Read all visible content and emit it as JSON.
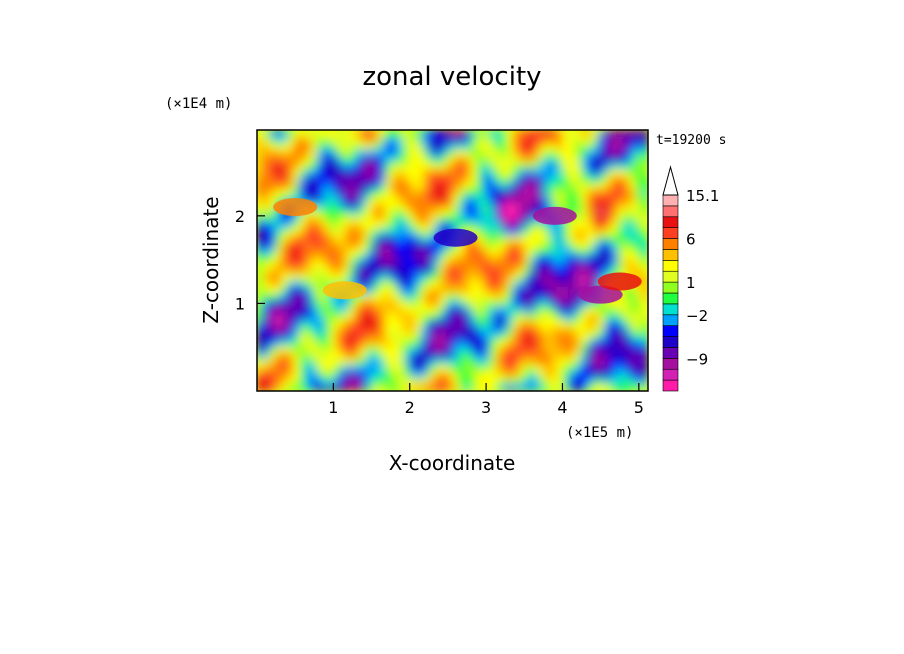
{
  "chart_data": {
    "type": "heatmap",
    "title": "zonal velocity",
    "xlabel": "X-coordinate",
    "ylabel": "Z-coordinate",
    "x_unit": "(×1E5 m)",
    "y_unit": "(×1E4 m)",
    "time_label": "t=19200 s",
    "xlim": [
      0,
      5.12
    ],
    "ylim": [
      0,
      2.98
    ],
    "x_ticks": [
      1,
      2,
      3,
      4,
      5
    ],
    "y_ticks": [
      1,
      2
    ],
    "colorbar": {
      "levels": [
        -12,
        -10,
        -9,
        -7,
        -5,
        -3,
        -2,
        -1,
        0,
        1,
        2,
        3,
        4.5,
        6,
        8,
        10,
        12.5,
        15.1
      ],
      "colors": [
        "#ff1aa8",
        "#d21fb4",
        "#a50fa0",
        "#6a00b4",
        "#1e00c8",
        "#0000ff",
        "#00a0ff",
        "#00e0d0",
        "#20ff40",
        "#90ff20",
        "#e0ff20",
        "#ffff00",
        "#ffc000",
        "#ff8000",
        "#ff4020",
        "#e81010",
        "#ff7070",
        "#ffb0b0"
      ],
      "tick_labels": [
        "15.1",
        "6",
        "1",
        "−2",
        "−9"
      ],
      "tick_values": [
        15.1,
        6,
        1,
        -2,
        -9
      ],
      "extend": "max"
    },
    "features": [
      {
        "x": 3.9,
        "z": 2.0,
        "value": -8.0
      },
      {
        "x": 4.5,
        "z": 1.1,
        "value": -8.0
      },
      {
        "x": 2.6,
        "z": 1.75,
        "value": -5.0
      },
      {
        "x": 1.15,
        "z": 1.15,
        "value": 5.0
      },
      {
        "x": 0.5,
        "z": 2.1,
        "value": 6.0
      },
      {
        "x": 4.75,
        "z": 1.25,
        "value": 10.0
      }
    ]
  }
}
